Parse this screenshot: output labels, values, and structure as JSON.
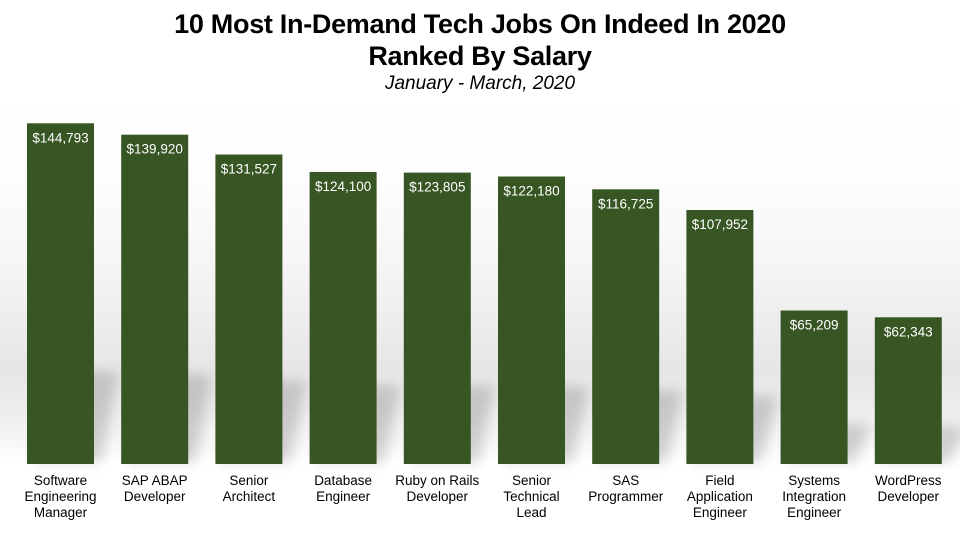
{
  "chart_data": {
    "type": "bar",
    "title_lines": [
      "10 Most In-Demand Tech Jobs On Indeed In 2020",
      "Ranked By Salary"
    ],
    "subtitle": "January - March, 2020",
    "categories": [
      [
        "Software",
        "Engineering",
        "Manager"
      ],
      [
        "SAP ABAP",
        "Developer"
      ],
      [
        "Senior",
        "Architect"
      ],
      [
        "Database",
        "Engineer"
      ],
      [
        "Ruby on Rails",
        "Developer"
      ],
      [
        "Senior",
        "Technical",
        "Lead"
      ],
      [
        "SAS",
        "Programmer"
      ],
      [
        "Field",
        "Application",
        "Engineer"
      ],
      [
        "Systems",
        "Integration",
        "Engineer"
      ],
      [
        "WordPress",
        "Developer"
      ]
    ],
    "values": [
      144793,
      139920,
      131527,
      124100,
      123805,
      122180,
      116725,
      107952,
      65209,
      62343
    ],
    "value_labels": [
      "$144,793",
      "$139,920",
      "$131,527",
      "$124,100",
      "$123,805",
      "$122,180",
      "$116,725",
      "$107,952",
      "$65,209",
      "$62,343"
    ],
    "xlabel": "",
    "ylabel": "",
    "ylim": [
      0,
      150000
    ],
    "grid": false,
    "legend": "none",
    "colors": {
      "bar": "#375623",
      "value_text": "#ffffff",
      "label_text": "#000000"
    }
  }
}
